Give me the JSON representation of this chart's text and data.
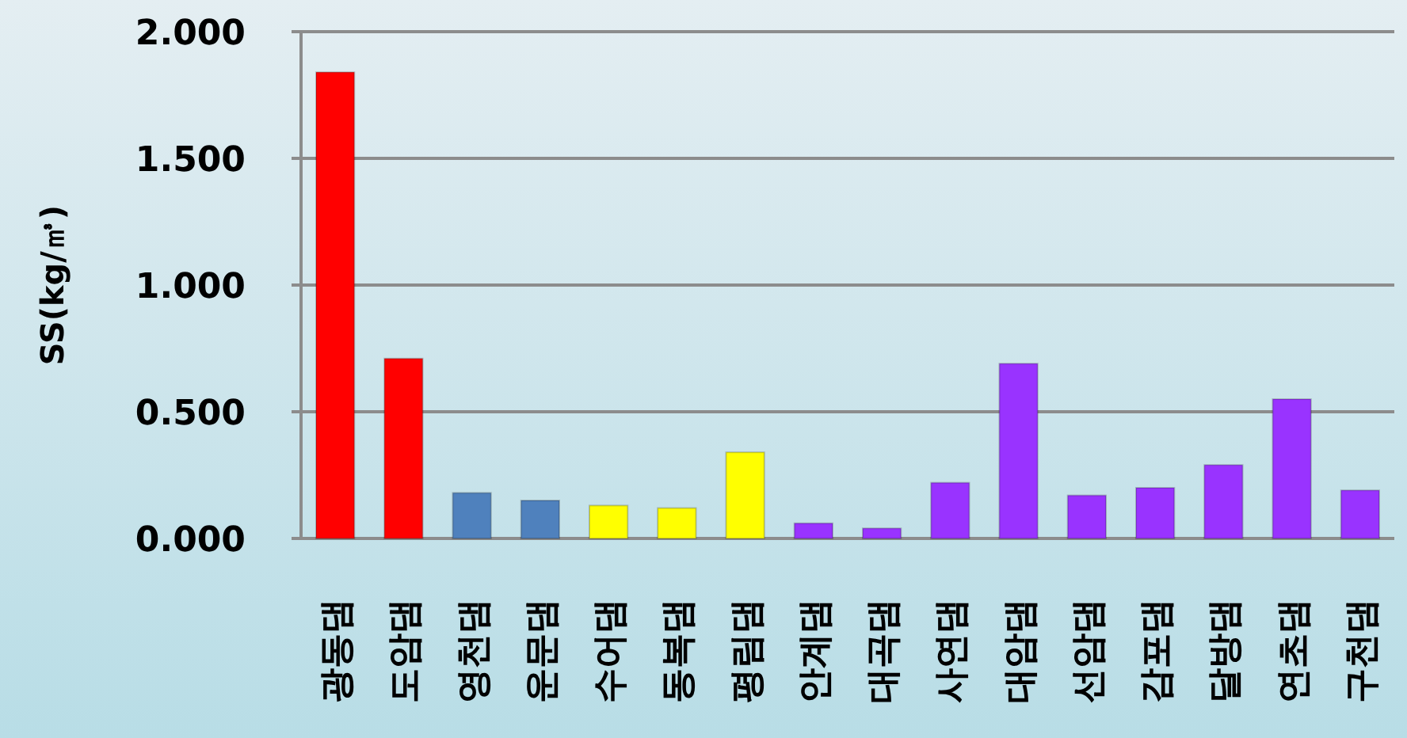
{
  "chart_data": {
    "type": "bar",
    "ylabel": "SS(kg/㎥)",
    "categories": [
      "광동댐",
      "도암댐",
      "영천댐",
      "운문댐",
      "수어댐",
      "동복댐",
      "평림댐",
      "안계댐",
      "대곡댐",
      "사연댐",
      "대암댐",
      "선암댐",
      "감포댐",
      "달방댐",
      "연초댐",
      "구천댐"
    ],
    "values": [
      1.84,
      0.71,
      0.18,
      0.15,
      0.13,
      0.12,
      0.34,
      0.06,
      0.04,
      0.22,
      0.69,
      0.17,
      0.2,
      0.29,
      0.55,
      0.19
    ],
    "colors": [
      "#ff0000",
      "#ff0000",
      "#4f81bd",
      "#4f81bd",
      "#ffff00",
      "#ffff00",
      "#ffff00",
      "#9933ff",
      "#9933ff",
      "#9933ff",
      "#9933ff",
      "#9933ff",
      "#9933ff",
      "#9933ff",
      "#9933ff",
      "#9933ff"
    ],
    "ylim": [
      0,
      2
    ],
    "yticks": [
      {
        "value": 0,
        "label": "0.000"
      },
      {
        "value": 0.5,
        "label": "0.500"
      },
      {
        "value": 1,
        "label": "1.000"
      },
      {
        "value": 1.5,
        "label": "1.500"
      },
      {
        "value": 2,
        "label": "2.000"
      }
    ],
    "grid": "y"
  }
}
